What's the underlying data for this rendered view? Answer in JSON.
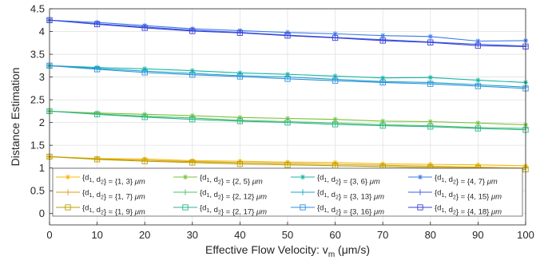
{
  "chart_data": {
    "type": "line",
    "xlabel": "Effective Flow Velocity: v",
    "xlabel_sub": "m",
    "xlabel_unit": " (μm/s)",
    "ylabel": "Distance Estimation",
    "xlim": [
      0,
      100
    ],
    "ylim": [
      -0.25,
      4.5
    ],
    "xticks": [
      0,
      10,
      20,
      30,
      40,
      50,
      60,
      70,
      80,
      90,
      100
    ],
    "yticks": [
      0,
      0.5,
      1,
      1.5,
      2,
      2.5,
      3,
      3.5,
      4,
      4.5
    ],
    "grid": true,
    "legend_position": "bottom",
    "legend_columns": 4,
    "x": [
      0,
      10,
      20,
      30,
      40,
      50,
      60,
      70,
      80,
      90,
      100
    ],
    "series": [
      {
        "name": "{d1, d2} = {1, 3} μm",
        "label_pair": "{1, 3}",
        "color": "#f5b800",
        "marker": "asterisk",
        "values": [
          1.25,
          1.21,
          1.2,
          1.16,
          1.15,
          1.13,
          1.12,
          1.09,
          1.08,
          1.07,
          1.05
        ]
      },
      {
        "name": "{d1, d2} = {1, 7} μm",
        "label_pair": "{1, 7}",
        "color": "#d4a017",
        "marker": "plus",
        "values": [
          1.25,
          1.2,
          1.17,
          1.14,
          1.12,
          1.1,
          1.08,
          1.06,
          1.04,
          1.02,
          1.0
        ]
      },
      {
        "name": "{d1, d2} = {1, 9} μm",
        "label_pair": "{1, 9}",
        "color": "#b8a000",
        "marker": "square",
        "values": [
          1.25,
          1.19,
          1.15,
          1.12,
          1.09,
          1.07,
          1.05,
          1.03,
          1.01,
          1.0,
          0.97
        ]
      },
      {
        "name": "{d1, d2} = {2, 5} μm",
        "label_pair": "{2, 5}",
        "color": "#77c13a",
        "marker": "asterisk",
        "values": [
          2.25,
          2.21,
          2.18,
          2.15,
          2.11,
          2.09,
          2.07,
          2.03,
          2.02,
          1.99,
          1.95
        ]
      },
      {
        "name": "{d1, d2} = {2, 12} μm",
        "label_pair": "{2, 12}",
        "color": "#4fc06a",
        "marker": "plus",
        "values": [
          2.25,
          2.19,
          2.14,
          2.1,
          2.05,
          2.02,
          1.99,
          1.95,
          1.93,
          1.89,
          1.87
        ]
      },
      {
        "name": "{d1, d2} = {2, 17} μm",
        "label_pair": "{2, 17}",
        "color": "#2bb58a",
        "marker": "square",
        "values": [
          2.25,
          2.18,
          2.12,
          2.07,
          2.03,
          2.0,
          1.96,
          1.93,
          1.91,
          1.87,
          1.84
        ]
      },
      {
        "name": "{d1, d2} = {3, 6} μm",
        "label_pair": "{3, 6}",
        "color": "#16b5a4",
        "marker": "asterisk",
        "values": [
          3.25,
          3.21,
          3.18,
          3.14,
          3.09,
          3.06,
          3.02,
          2.98,
          2.99,
          2.93,
          2.88
        ]
      },
      {
        "name": "{d1, d2} = {3, 13} μm",
        "label_pair": "{3, 13}",
        "color": "#1aa6c4",
        "marker": "plus",
        "values": [
          3.25,
          3.19,
          3.13,
          3.08,
          3.03,
          3.0,
          2.95,
          2.9,
          2.88,
          2.83,
          2.78
        ]
      },
      {
        "name": "{d1, d2} = {3, 16} μm",
        "label_pair": "{3, 16}",
        "color": "#2c8ee0",
        "marker": "square",
        "values": [
          3.25,
          3.17,
          3.1,
          3.05,
          3.01,
          2.96,
          2.92,
          2.88,
          2.85,
          2.8,
          2.75
        ]
      },
      {
        "name": "{d1, d2} = {4, 7} μm",
        "label_pair": "{4, 7}",
        "color": "#3a7ae8",
        "marker": "asterisk",
        "values": [
          4.25,
          4.2,
          4.13,
          4.06,
          4.02,
          3.98,
          3.95,
          3.91,
          3.89,
          3.79,
          3.8
        ]
      },
      {
        "name": "{d1, d2} = {4, 15} μm",
        "label_pair": "{4, 15}",
        "color": "#3d5ee6",
        "marker": "plus",
        "values": [
          4.25,
          4.17,
          4.1,
          4.03,
          3.98,
          3.92,
          3.87,
          3.82,
          3.77,
          3.72,
          3.68
        ]
      },
      {
        "name": "{d1, d2} = {4, 18} μm",
        "label_pair": "{4, 18}",
        "color": "#3a3fd8",
        "marker": "square",
        "values": [
          4.25,
          4.16,
          4.08,
          4.01,
          3.97,
          3.91,
          3.86,
          3.8,
          3.76,
          3.69,
          3.67
        ]
      }
    ]
  }
}
